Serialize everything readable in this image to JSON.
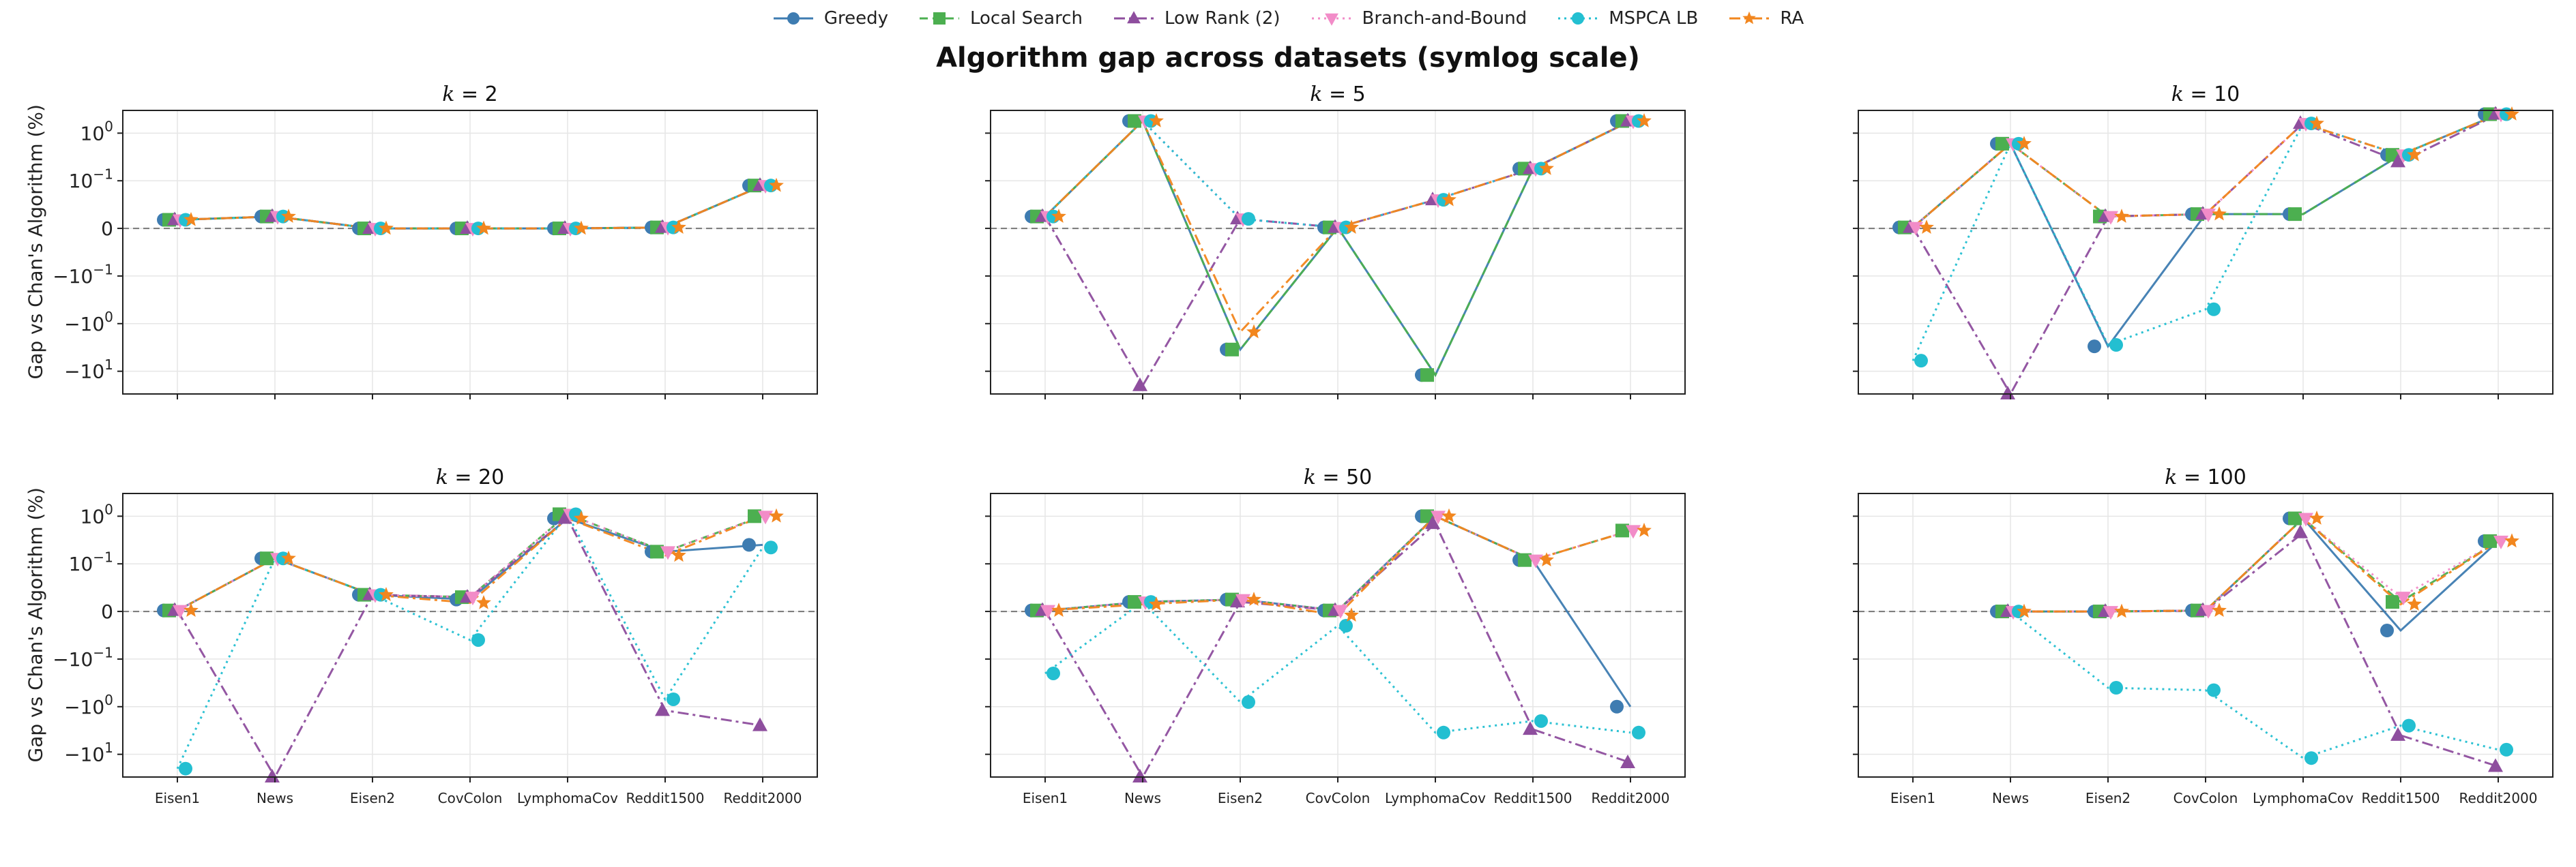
{
  "page": {
    "title": "Algorithm gap across datasets (symlog scale)",
    "ylabel": "Gap vs Chan's Algorithm (%)"
  },
  "legend": [
    {
      "name": "Greedy",
      "color": "#3e7cb1",
      "marker": "circle",
      "dash": "solid"
    },
    {
      "name": "Local Search",
      "color": "#4caf50",
      "marker": "square",
      "dash": "dashed"
    },
    {
      "name": "Low Rank (2)",
      "color": "#8e4e9e",
      "marker": "triangle-up",
      "dash": "dashdot"
    },
    {
      "name": "Branch-and-Bound",
      "color": "#f28cc8",
      "marker": "triangle-down",
      "dash": "dotted"
    },
    {
      "name": "MSPCA LB",
      "color": "#23bfd1",
      "marker": "circle",
      "dash": "dotted"
    },
    {
      "name": "RA",
      "color": "#f2861e",
      "marker": "star",
      "dash": "dashdot"
    }
  ],
  "chart_data": [
    {
      "type": "line",
      "title": "k = 2",
      "k": "2",
      "categories": [
        "Eisen1",
        "News",
        "Eisen2",
        "CovColon",
        "LymphomaCov",
        "Reddit1500",
        "Reddit2000"
      ],
      "yscale": "symlog",
      "ylim": [
        -30,
        3
      ],
      "yticks": [
        {
          "v": 1,
          "label": "10^0"
        },
        {
          "v": 0.1,
          "label": "10^-1"
        },
        {
          "v": 0,
          "label": "0"
        },
        {
          "v": -0.1,
          "label": "-10^-1"
        },
        {
          "v": -1,
          "label": "-10^0"
        },
        {
          "v": -10,
          "label": "-10^1"
        }
      ],
      "show_xticklabels": false,
      "show_yticklabels": true,
      "series": [
        {
          "name": "Greedy",
          "values": [
            0.018,
            0.025,
            0.0,
            0.0,
            0.0,
            0.002,
            0.09
          ]
        },
        {
          "name": "Local Search",
          "values": [
            0.018,
            0.025,
            0.0,
            0.0,
            0.0,
            0.002,
            0.09
          ]
        },
        {
          "name": "Low Rank (2)",
          "values": [
            0.018,
            0.025,
            0.0,
            0.0,
            0.0,
            0.002,
            0.09
          ]
        },
        {
          "name": "Branch-and-Bound",
          "values": [
            0.018,
            0.025,
            0.0,
            0.0,
            0.0,
            0.002,
            0.09
          ]
        },
        {
          "name": "MSPCA LB",
          "values": [
            0.018,
            0.025,
            0.0,
            0.0,
            0.0,
            0.002,
            0.09
          ]
        },
        {
          "name": "RA",
          "values": [
            0.018,
            0.025,
            0.0,
            0.0,
            0.0,
            0.002,
            0.09
          ]
        }
      ]
    },
    {
      "type": "line",
      "title": "k = 5",
      "k": "5",
      "categories": [
        "Eisen1",
        "News",
        "Eisen2",
        "CovColon",
        "LymphomaCov",
        "Reddit1500",
        "Reddit2000"
      ],
      "yscale": "symlog",
      "ylim": [
        -30,
        3
      ],
      "yticks": [
        {
          "v": 1,
          "label": "10^0"
        },
        {
          "v": 0.1,
          "label": "10^-1"
        },
        {
          "v": 0,
          "label": "0"
        },
        {
          "v": -0.1,
          "label": "-10^-1"
        },
        {
          "v": -1,
          "label": "-10^0"
        },
        {
          "v": -10,
          "label": "-10^1"
        }
      ],
      "show_xticklabels": false,
      "show_yticklabels": false,
      "series": [
        {
          "name": "Greedy",
          "values": [
            0.025,
            1.8,
            -3.5,
            0.002,
            -12,
            0.18,
            1.8
          ]
        },
        {
          "name": "Local Search",
          "values": [
            0.025,
            1.8,
            -3.5,
            0.002,
            -12,
            0.18,
            1.8
          ]
        },
        {
          "name": "Low Rank (2)",
          "values": [
            0.025,
            -20,
            0.02,
            0.002,
            0.06,
            0.18,
            1.8
          ]
        },
        {
          "name": "Branch-and-Bound",
          "values": [
            0.025,
            1.8,
            0.02,
            0.002,
            0.06,
            0.18,
            1.8
          ]
        },
        {
          "name": "MSPCA LB",
          "values": [
            0.025,
            1.8,
            0.02,
            0.002,
            0.06,
            0.18,
            1.8
          ]
        },
        {
          "name": "RA",
          "values": [
            0.025,
            1.8,
            -1.5,
            0.002,
            0.06,
            0.18,
            1.8
          ]
        }
      ]
    },
    {
      "type": "line",
      "title": "k = 10",
      "k": "10",
      "categories": [
        "Eisen1",
        "News",
        "Eisen2",
        "CovColon",
        "LymphomaCov",
        "Reddit1500",
        "Reddit2000"
      ],
      "yscale": "symlog",
      "ylim": [
        -30,
        3
      ],
      "yticks": [
        {
          "v": 1,
          "label": "10^0"
        },
        {
          "v": 0.1,
          "label": "10^-1"
        },
        {
          "v": 0,
          "label": "0"
        },
        {
          "v": -0.1,
          "label": "-10^-1"
        },
        {
          "v": -1,
          "label": "-10^0"
        },
        {
          "v": -10,
          "label": "-10^1"
        }
      ],
      "show_xticklabels": false,
      "show_yticklabels": false,
      "series": [
        {
          "name": "Greedy",
          "values": [
            0.002,
            0.6,
            -3,
            0.03,
            0.03,
            0.35,
            2.5
          ]
        },
        {
          "name": "Local Search",
          "values": [
            0.002,
            0.6,
            0.025,
            0.03,
            0.03,
            0.35,
            2.5
          ]
        },
        {
          "name": "Low Rank (2)",
          "values": [
            0.002,
            -30,
            0.025,
            0.03,
            1.6,
            0.25,
            2.5
          ]
        },
        {
          "name": "Branch-and-Bound",
          "values": [
            0.002,
            0.6,
            0.025,
            0.03,
            1.6,
            0.35,
            2.5
          ]
        },
        {
          "name": "MSPCA LB",
          "values": [
            -6,
            0.6,
            -2.8,
            -0.5,
            1.6,
            0.35,
            2.5
          ]
        },
        {
          "name": "RA",
          "values": [
            0.002,
            0.6,
            0.025,
            0.03,
            1.6,
            0.35,
            2.5
          ]
        }
      ]
    },
    {
      "type": "line",
      "title": "k = 20",
      "k": "20",
      "categories": [
        "Eisen1",
        "News",
        "Eisen2",
        "CovColon",
        "LymphomaCov",
        "Reddit1500",
        "Reddit2000"
      ],
      "yscale": "symlog",
      "ylim": [
        -30,
        3
      ],
      "yticks": [
        {
          "v": 1,
          "label": "10^0"
        },
        {
          "v": 0.1,
          "label": "10^-1"
        },
        {
          "v": 0,
          "label": "0"
        },
        {
          "v": -0.1,
          "label": "-10^-1"
        },
        {
          "v": -1,
          "label": "-10^0"
        },
        {
          "v": -10,
          "label": "-10^1"
        }
      ],
      "show_xticklabels": true,
      "show_yticklabels": true,
      "series": [
        {
          "name": "Greedy",
          "values": [
            0.002,
            0.13,
            0.035,
            0.025,
            0.9,
            0.18,
            0.25
          ]
        },
        {
          "name": "Local Search",
          "values": [
            0.002,
            0.13,
            0.035,
            0.03,
            1.1,
            0.18,
            1.0
          ]
        },
        {
          "name": "Low Rank (2)",
          "values": [
            0.002,
            -30,
            0.035,
            0.03,
            0.9,
            -1.2,
            -2.5
          ]
        },
        {
          "name": "Branch-and-Bound",
          "values": [
            0.002,
            0.13,
            0.035,
            0.03,
            1.1,
            0.18,
            1.0
          ]
        },
        {
          "name": "MSPCA LB",
          "values": [
            -20,
            0.13,
            0.035,
            -0.06,
            1.1,
            -0.7,
            0.22
          ]
        },
        {
          "name": "RA",
          "values": [
            0.002,
            0.13,
            0.035,
            0.018,
            0.9,
            0.15,
            1.0
          ]
        }
      ]
    },
    {
      "type": "line",
      "title": "k = 50",
      "k": "50",
      "categories": [
        "Eisen1",
        "News",
        "Eisen2",
        "CovColon",
        "LymphomaCov",
        "Reddit1500",
        "Reddit2000"
      ],
      "yscale": "symlog",
      "ylim": [
        -30,
        3
      ],
      "yticks": [
        {
          "v": 1,
          "label": "10^0"
        },
        {
          "v": 0.1,
          "label": "10^-1"
        },
        {
          "v": 0,
          "label": "0"
        },
        {
          "v": -0.1,
          "label": "-10^-1"
        },
        {
          "v": -1,
          "label": "-10^0"
        },
        {
          "v": -10,
          "label": "-10^1"
        }
      ],
      "show_xticklabels": true,
      "show_yticklabels": false,
      "series": [
        {
          "name": "Greedy",
          "values": [
            0.002,
            0.02,
            0.025,
            0.002,
            1.0,
            0.12,
            -1.0
          ]
        },
        {
          "name": "Local Search",
          "values": [
            0.002,
            0.02,
            0.025,
            0.002,
            1.0,
            0.12,
            0.5
          ]
        },
        {
          "name": "Low Rank (2)",
          "values": [
            0.002,
            -30,
            0.02,
            0.002,
            0.7,
            -3,
            -15
          ]
        },
        {
          "name": "Branch-and-Bound",
          "values": [
            0.002,
            0.02,
            0.025,
            0.002,
            1.0,
            0.12,
            0.5
          ]
        },
        {
          "name": "MSPCA LB",
          "values": [
            -0.2,
            0.02,
            -0.8,
            -0.03,
            -3.5,
            -2,
            -3.5
          ]
        },
        {
          "name": "RA",
          "values": [
            0.002,
            0.015,
            0.025,
            -0.008,
            1.0,
            0.12,
            0.5
          ]
        }
      ]
    },
    {
      "type": "line",
      "title": "k = 100",
      "k": "100",
      "categories": [
        "Eisen1",
        "News",
        "Eisen2",
        "CovColon",
        "LymphomaCov",
        "Reddit1500",
        "Reddit2000"
      ],
      "yscale": "symlog",
      "ylim": [
        -30,
        3
      ],
      "yticks": [
        {
          "v": 1,
          "label": "10^0"
        },
        {
          "v": 0.1,
          "label": "10^-1"
        },
        {
          "v": 0,
          "label": "0"
        },
        {
          "v": -0.1,
          "label": "-10^-1"
        },
        {
          "v": -1,
          "label": "-10^0"
        },
        {
          "v": -10,
          "label": "-10^1"
        }
      ],
      "show_xticklabels": true,
      "show_yticklabels": false,
      "series": [
        {
          "name": "Greedy",
          "values": [
            null,
            0.0,
            0.0,
            0.002,
            0.9,
            -0.04,
            0.3
          ]
        },
        {
          "name": "Local Search",
          "values": [
            null,
            0.0,
            0.0,
            0.002,
            0.9,
            0.02,
            0.3
          ]
        },
        {
          "name": "Low Rank (2)",
          "values": [
            null,
            0.0,
            0.0,
            0.002,
            0.45,
            -4,
            -18
          ]
        },
        {
          "name": "Branch-and-Bound",
          "values": [
            null,
            0.0,
            0.0,
            0.002,
            0.9,
            0.03,
            0.3
          ]
        },
        {
          "name": "MSPCA LB",
          "values": [
            null,
            0.0,
            -0.4,
            -0.45,
            -12,
            -2.5,
            -8
          ]
        },
        {
          "name": "RA",
          "values": [
            null,
            0.0,
            0.0,
            0.002,
            0.9,
            0.015,
            0.3
          ]
        }
      ]
    }
  ]
}
